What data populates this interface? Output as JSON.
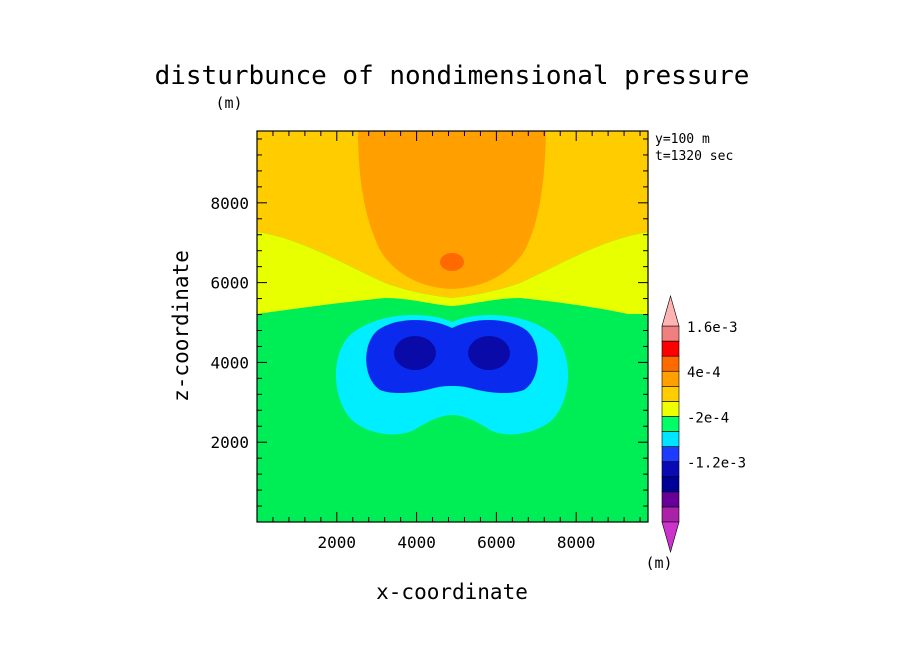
{
  "chart_data": {
    "type": "contour",
    "title": "disturbunce of nondimensional pressure",
    "title_unit": "(m)",
    "xlabel": "x-coordinate",
    "ylabel": "z-coordinate",
    "xlim": [
      0,
      9800
    ],
    "ylim": [
      0,
      9800
    ],
    "xticks": [
      2000,
      4000,
      6000,
      8000
    ],
    "yticks": [
      2000,
      4000,
      6000,
      8000
    ],
    "annotations": [
      "y=100 m",
      "t=1320 sec"
    ],
    "colorbar": {
      "unit": "(m)",
      "tick_labels": [
        "1.6e-3",
        "4e-4",
        "-2e-4",
        "-1.2e-3"
      ],
      "levels": [
        -0.0018,
        -0.0016,
        -0.0014,
        -0.0012,
        -0.001,
        -0.0008,
        -0.0006,
        -0.0004,
        -0.0002,
        0,
        0.0002,
        0.0004,
        0.0008,
        0.0012,
        0.0016,
        0.002
      ],
      "colors": [
        "#cc33cc",
        "#aa22aa",
        "#660099",
        "#000099",
        "#0a0ab4",
        "#1e3cff",
        "#00e5ff",
        "#00ff66",
        "#eeff00",
        "#ffcc00",
        "#ffa000",
        "#ff6a00",
        "#ff0000",
        "#f08080",
        "#ffb3b3"
      ]
    },
    "regions": {
      "background_lower": {
        "color": "#00ee55",
        "z_range": [
          0,
          5300
        ]
      },
      "yellow_band": {
        "color": "#e8ff00",
        "z_range": [
          5300,
          7400
        ]
      },
      "upper_background": {
        "color": "#ffcc00",
        "z_range": [
          7400,
          9800
        ]
      },
      "orange_plume": {
        "color": "#ffa000",
        "x_range": [
          2500,
          7200
        ],
        "z_range": [
          5700,
          9800
        ]
      },
      "red_core": {
        "color": "#ff6a00",
        "x": 4950,
        "z": 6550
      },
      "cyan_lobe": {
        "color": "#00eeff",
        "x_range": [
          2000,
          7700
        ],
        "z_range": [
          2300,
          5000
        ]
      },
      "blue_lobe": {
        "color": "#0a2aee",
        "x_range": [
          3000,
          6700
        ],
        "z_range": [
          3400,
          5000
        ]
      },
      "darkblue_minima": {
        "color": "#0a0aa8",
        "x": [
          3900,
          5900
        ],
        "z": [
          4350,
          4350
        ]
      }
    }
  }
}
